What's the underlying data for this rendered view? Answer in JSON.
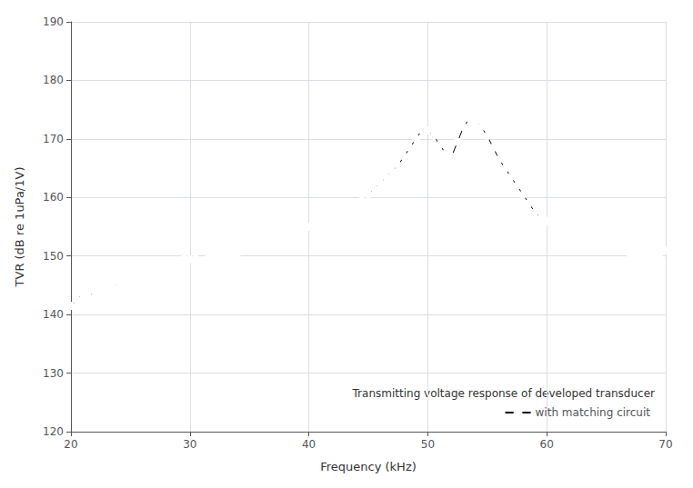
{
  "chart_data": {
    "type": "line",
    "xlabel": "Frequency (kHz)",
    "ylabel": "TVR (dB re 1uPa/1V)",
    "legend_title": "Transmitting voltage response of developed transducer",
    "x": [
      20.0,
      20.5,
      21.0,
      21.5,
      22.0,
      22.5,
      23.0,
      23.5,
      24.0,
      24.5,
      25.0,
      25.5,
      26.0,
      26.5,
      27.0,
      27.5,
      28.0,
      28.5,
      29.0,
      29.5,
      30.0,
      30.5,
      31.0,
      31.5,
      32.0,
      32.5,
      33.0,
      33.5,
      34.0,
      34.5,
      35.0,
      35.5,
      36.0,
      36.5,
      37.0,
      37.5,
      38.0,
      38.5,
      39.0,
      39.5,
      40.0,
      40.5,
      41.0,
      41.5,
      42.0,
      42.5,
      43.0,
      43.5,
      44.0,
      44.5,
      45.0,
      45.5,
      46.0,
      46.5,
      47.0,
      47.5,
      48.0,
      48.5,
      49.0,
      49.5,
      50.0,
      50.5,
      51.0,
      51.5,
      52.0,
      52.5,
      53.0,
      53.5,
      54.0,
      54.5,
      55.0,
      55.5,
      56.0,
      56.5,
      57.0,
      57.5,
      58.0,
      58.5,
      59.0,
      59.5,
      60.0,
      60.5,
      61.0,
      61.5,
      62.0,
      62.5,
      63.0,
      63.5,
      64.0,
      64.5,
      65.0,
      65.5,
      66.0,
      66.5,
      67.0,
      67.5,
      68.0,
      68.5,
      69.0,
      69.5,
      70.0
    ],
    "series": [
      {
        "name": "with matching circuit",
        "color": "#000000",
        "marker": "circle",
        "values": [
          141.5,
          142.5,
          143.5,
          143.0,
          144.0,
          144.5,
          145.0,
          144.5,
          145.5,
          146.0,
          145.5,
          146.0,
          146.5,
          147.0,
          147.5,
          148.0,
          148.5,
          149.0,
          149.0,
          149.5,
          149.5,
          149.5,
          149.0,
          149.5,
          150.0,
          150.0,
          150.5,
          150.5,
          150.5,
          151.0,
          151.0,
          151.5,
          152.0,
          152.5,
          152.5,
          153.0,
          153.5,
          153.5,
          154.0,
          154.5,
          155.0,
          155.5,
          156.0,
          156.5,
          157.0,
          157.5,
          158.0,
          158.5,
          159.0,
          159.5,
          160.5,
          161.5,
          162.5,
          163.5,
          164.5,
          165.5,
          167.0,
          168.5,
          170.0,
          171.5,
          171.5,
          170.5,
          169.0,
          167.5,
          167.0,
          169.5,
          172.0,
          173.5,
          173.0,
          172.0,
          170.5,
          168.5,
          166.5,
          165.0,
          163.5,
          162.0,
          160.5,
          159.0,
          157.5,
          156.5,
          156.0,
          155.5,
          155.0,
          154.5,
          154.0,
          153.5,
          153.0,
          152.5,
          152.0,
          152.0,
          151.5,
          151.5,
          151.0,
          151.0,
          150.5,
          150.5,
          150.5,
          150.5,
          150.5,
          150.5,
          151.0
        ]
      }
    ],
    "xlim": [
      20,
      70
    ],
    "ylim": [
      120,
      190
    ],
    "xticks": [
      20,
      30,
      40,
      50,
      60,
      70
    ],
    "yticks": [
      120,
      130,
      140,
      150,
      160,
      170,
      180,
      190
    ],
    "grid": true,
    "legend": "lower right"
  }
}
